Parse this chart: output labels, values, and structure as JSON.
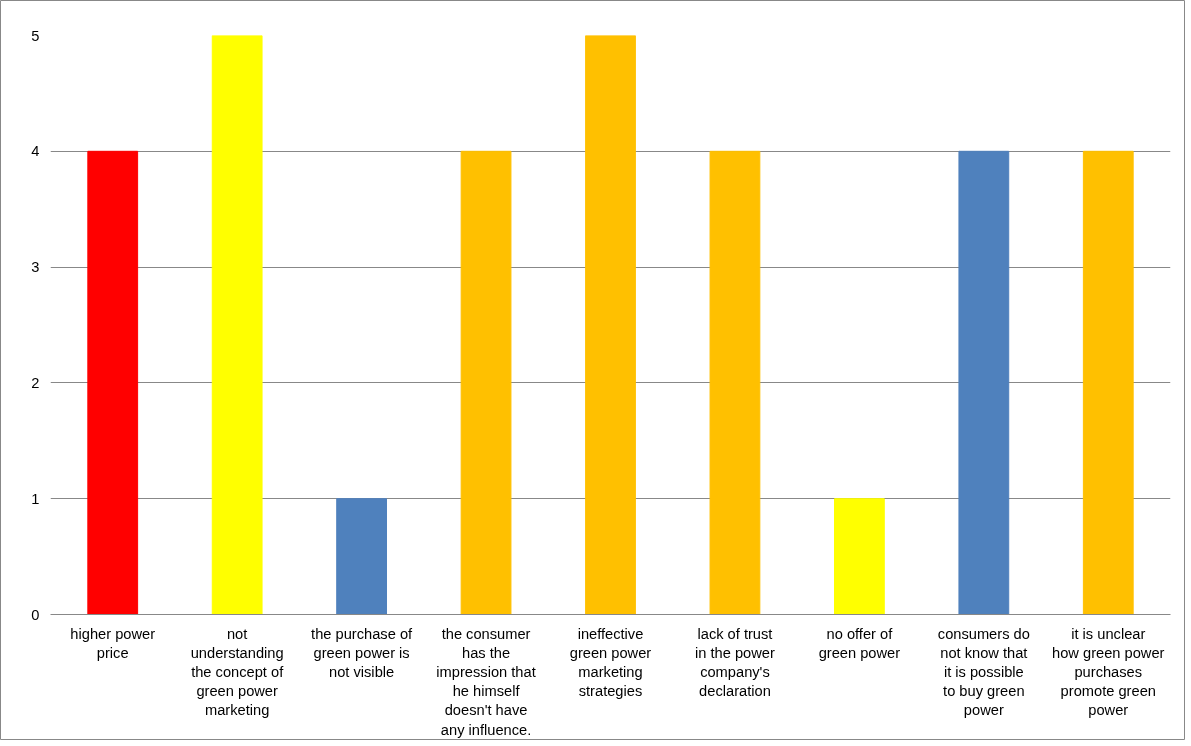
{
  "chart_data": {
    "type": "bar",
    "categories": [
      "higher power price",
      "not understanding the concept of green power marketing",
      "the purchase of green power is not visible",
      "the consumer has the impression that he himself doesn't have any influence.",
      "ineffective green power marketing strategies",
      "lack of trust in the power company's declaration",
      "no offer of green power",
      "consumers do not know that it is possible to buy green power",
      "it is unclear how green power purchases promote green power"
    ],
    "values": [
      4,
      5,
      1,
      4,
      5,
      4,
      1,
      4,
      4
    ],
    "colors": [
      "#ff0000",
      "#ffff00",
      "#4f81bd",
      "#ffc000",
      "#ffc000",
      "#ffc000",
      "#ffff00",
      "#4f81bd",
      "#ffc000"
    ],
    "ylim": [
      0,
      5
    ],
    "yticks": [
      0,
      1,
      2,
      3,
      4,
      5
    ],
    "grid": "y"
  }
}
